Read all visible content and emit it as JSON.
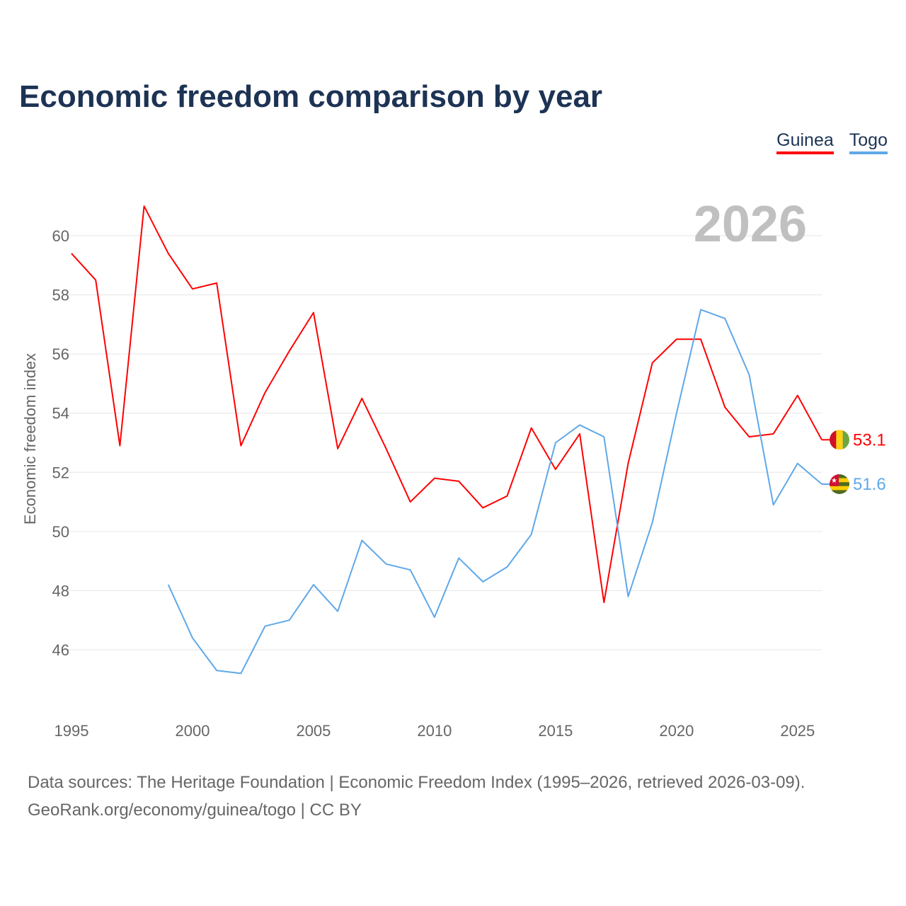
{
  "chart_data": {
    "type": "line",
    "title": "Economic freedom comparison by year",
    "xlabel": "",
    "ylabel": "Economic freedom index",
    "xlim": [
      1995,
      2026
    ],
    "ylim": [
      46,
      60
    ],
    "yticks": [
      46,
      48,
      50,
      52,
      54,
      56,
      58,
      60
    ],
    "xticks": [
      1995,
      2000,
      2005,
      2010,
      2015,
      2020,
      2025
    ],
    "grid": true,
    "legend_position": "top-right",
    "year_label": "2026",
    "series": [
      {
        "name": "Guinea",
        "color": "#ff0000",
        "end_label": "53.1",
        "x": [
          1995,
          1996,
          1997,
          1998,
          1999,
          2000,
          2001,
          2002,
          2003,
          2004,
          2005,
          2006,
          2007,
          2008,
          2009,
          2010,
          2011,
          2012,
          2013,
          2014,
          2015,
          2016,
          2017,
          2018,
          2019,
          2020,
          2021,
          2022,
          2023,
          2024,
          2025,
          2026
        ],
        "values": [
          59.4,
          58.5,
          52.9,
          61.0,
          59.4,
          58.2,
          58.4,
          52.9,
          54.7,
          56.1,
          57.4,
          52.8,
          54.5,
          52.8,
          51.0,
          51.8,
          51.7,
          50.8,
          51.2,
          53.5,
          52.1,
          53.3,
          47.6,
          52.3,
          55.7,
          56.5,
          56.5,
          54.2,
          53.2,
          53.3,
          54.6,
          53.1
        ]
      },
      {
        "name": "Togo",
        "color": "#5fa8e8",
        "end_label": "51.6",
        "x": [
          1999,
          2000,
          2001,
          2002,
          2003,
          2004,
          2005,
          2006,
          2007,
          2008,
          2009,
          2010,
          2011,
          2012,
          2013,
          2014,
          2015,
          2016,
          2017,
          2018,
          2019,
          2020,
          2021,
          2022,
          2023,
          2024,
          2025,
          2026
        ],
        "values": [
          48.2,
          46.4,
          45.3,
          45.2,
          46.8,
          47.0,
          48.2,
          47.3,
          49.7,
          48.9,
          48.7,
          47.1,
          49.1,
          48.3,
          48.8,
          49.9,
          53.0,
          53.6,
          53.2,
          47.8,
          50.3,
          54.0,
          57.5,
          57.2,
          55.3,
          50.9,
          52.3,
          51.6
        ]
      }
    ]
  },
  "footer": {
    "line1": "Data sources: The Heritage Foundation | Economic Freedom Index (1995–2026, retrieved 2026-03-09).",
    "line2": "GeoRank.org/economy/guinea/togo | CC BY"
  }
}
